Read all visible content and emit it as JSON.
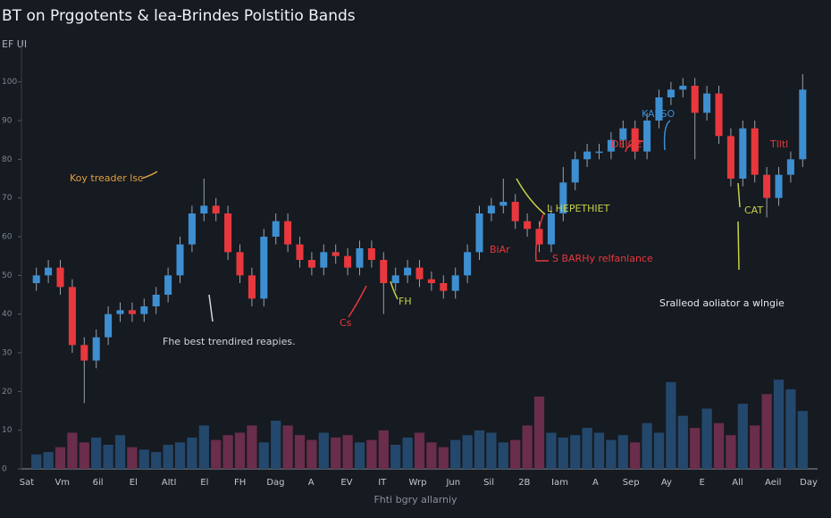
{
  "chart_data": {
    "type": "candlestick",
    "title": "BT on Prggotents & lea-Brindes Polstitio Bands",
    "subtitle": "EF UI",
    "x_axis_label": "Fhti bgry allarniy",
    "up_color": "#3d8fd1",
    "down_color": "#e8383d",
    "volume_up_color": "#23486c",
    "volume_down_color": "#6a2d4b",
    "ylim": [
      0,
      105
    ],
    "yticks": [
      0,
      10,
      20,
      30,
      40,
      50,
      60,
      70,
      80,
      90,
      100
    ],
    "volume_ylim": [
      0,
      100
    ],
    "x_labels": [
      "Sat",
      "Vm",
      "6il",
      "El",
      "AItI",
      "El",
      "FH",
      "Dag",
      "A",
      "EV",
      "IT",
      "Wrp",
      "Jun",
      "Sil",
      "2B",
      "Iam",
      "A",
      "Sep",
      "Ay",
      "E",
      "All",
      "Aeil",
      "Day"
    ],
    "open": [
      48,
      50,
      52,
      47,
      32,
      28,
      34,
      40,
      41,
      40,
      42,
      45,
      50,
      58,
      66,
      68,
      66,
      56,
      50,
      44,
      60,
      64,
      58,
      54,
      52,
      56,
      55,
      52,
      57,
      54,
      48,
      50,
      52,
      49,
      48,
      46,
      50,
      56,
      66,
      68,
      69,
      64,
      62,
      58,
      66,
      74,
      80,
      82,
      82,
      85,
      88,
      82,
      90,
      96,
      98,
      99,
      92,
      97,
      86,
      75,
      88,
      76,
      70,
      76,
      80
    ],
    "high": [
      52,
      54,
      54,
      49,
      34,
      36,
      42,
      43,
      43,
      44,
      47,
      52,
      60,
      68,
      75,
      70,
      68,
      58,
      52,
      62,
      66,
      66,
      60,
      56,
      58,
      58,
      57,
      59,
      59,
      56,
      52,
      54,
      54,
      51,
      50,
      52,
      58,
      68,
      70,
      75,
      71,
      66,
      64,
      68,
      78,
      82,
      84,
      84,
      87,
      90,
      90,
      92,
      98,
      100,
      101,
      101,
      99,
      99,
      88,
      90,
      90,
      78,
      78,
      82,
      102
    ],
    "low": [
      46,
      48,
      45,
      30,
      17,
      26,
      32,
      38,
      38,
      38,
      40,
      43,
      48,
      56,
      64,
      64,
      54,
      48,
      42,
      42,
      58,
      56,
      52,
      50,
      50,
      53,
      50,
      50,
      52,
      40,
      46,
      48,
      47,
      46,
      44,
      44,
      48,
      54,
      64,
      66,
      62,
      60,
      56,
      56,
      64,
      72,
      78,
      80,
      80,
      83,
      80,
      80,
      88,
      94,
      96,
      80,
      90,
      84,
      73,
      73,
      74,
      65,
      68,
      74,
      78
    ],
    "close": [
      50,
      52,
      47,
      32,
      28,
      34,
      40,
      41,
      40,
      42,
      45,
      50,
      58,
      66,
      68,
      66,
      56,
      50,
      44,
      60,
      64,
      58,
      54,
      52,
      56,
      55,
      52,
      57,
      54,
      48,
      50,
      52,
      49,
      48,
      46,
      50,
      56,
      66,
      68,
      69,
      64,
      62,
      58,
      66,
      74,
      80,
      82,
      82,
      85,
      88,
      82,
      90,
      96,
      98,
      99,
      92,
      97,
      86,
      75,
      88,
      76,
      70,
      76,
      80,
      98
    ],
    "volume": [
      12,
      14,
      18,
      30,
      22,
      26,
      20,
      28,
      18,
      16,
      14,
      20,
      22,
      26,
      36,
      24,
      28,
      30,
      36,
      22,
      40,
      36,
      28,
      24,
      30,
      26,
      28,
      22,
      24,
      32,
      20,
      26,
      30,
      22,
      18,
      24,
      28,
      32,
      30,
      22,
      24,
      36,
      60,
      30,
      26,
      28,
      34,
      30,
      24,
      28,
      22,
      38,
      30,
      72,
      44,
      34,
      50,
      38,
      28,
      54,
      36,
      62,
      74,
      66,
      48
    ],
    "annotations": [
      {
        "text": "Koy treader lsc",
        "color": "#e0a040"
      },
      {
        "text": "Fhe best trendired reapies.",
        "color": "#d0d4dc"
      },
      {
        "text": "L HEPETHIET",
        "color": "#c8d048"
      },
      {
        "text": "S BARHy relfanlance",
        "color": "#e8383d"
      },
      {
        "text": "DEIOE",
        "color": "#e8383d"
      },
      {
        "text": "KASSO",
        "color": "#3d8fd1"
      },
      {
        "text": "Sralleod aoliator a wlngie",
        "color": "#e6e8ee"
      },
      {
        "text": "CAT",
        "color": "#c8d048"
      },
      {
        "text": "Tlltl",
        "color": "#e8383d"
      },
      {
        "text": "Cs",
        "color": "#e8383d"
      },
      {
        "text": "FH",
        "color": "#c8d048"
      },
      {
        "text": "BiAr",
        "color": "#e8383d"
      }
    ]
  }
}
